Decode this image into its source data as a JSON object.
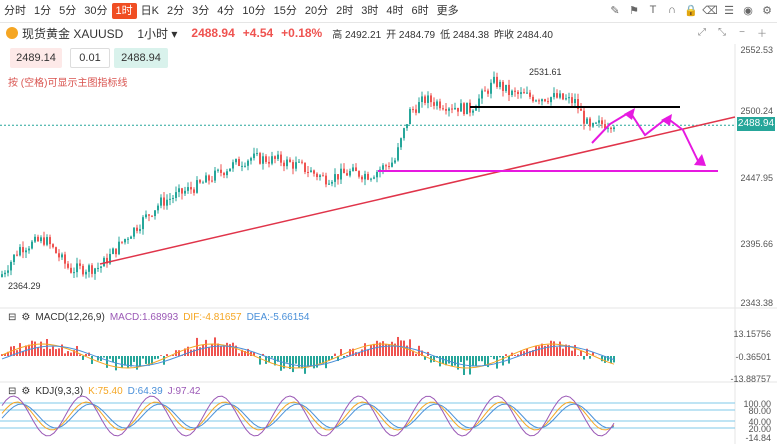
{
  "toolbar": {
    "timeframes": [
      "分时",
      "1分",
      "5分",
      "30分",
      "1时",
      "日K",
      "2分",
      "3分",
      "4分",
      "10分",
      "15分",
      "20分",
      "2时",
      "3时",
      "4时",
      "6时",
      "更多"
    ],
    "active_index": 4,
    "tool_icons": [
      "pen-icon",
      "flag-icon",
      "text-icon",
      "magnet-icon",
      "lock-icon",
      "eraser-icon",
      "layers-icon",
      "eye-icon",
      "settings-icon"
    ]
  },
  "symbol": {
    "name": "现货黄金 XAUUSD",
    "period": "1小时",
    "price": "2488.94",
    "change": "+4.54",
    "change_pct": "+0.18%",
    "high_label": "高 2492.21",
    "open_label": "开 2484.79",
    "low_label": "低 2484.38",
    "prev_label": "昨收 2484.40"
  },
  "order": {
    "sell": "2489.14",
    "lot": "0.01",
    "buy": "2488.94"
  },
  "hint": "按 (空格)可显示主图指标线",
  "price_axis": [
    "2552.53",
    "2500.24",
    "2447.95",
    "2395.66",
    "2343.38"
  ],
  "current_price_tag": "2488.94",
  "annotations": {
    "high": "2531.61",
    "low": "2364.29"
  },
  "macd": {
    "title": "MACD(12,26,9)",
    "macd": "MACD:1.68993",
    "dif": "DIF:-4.81657",
    "dea": "DEA:-5.66154",
    "axis": [
      "13.15756",
      "-0.36501",
      "-13.88757"
    ]
  },
  "kdj": {
    "title": "KDJ(9,3,3)",
    "k": "K:75.40",
    "d": "D:64.39",
    "j": "J:97.42",
    "axis": [
      "100.00",
      "80.00",
      "40.00",
      "20.00",
      "-14.84"
    ]
  },
  "colors": {
    "up": "#26a69a",
    "down": "#ef5350",
    "trend": "#e0344a",
    "magenta": "#e619e0",
    "macd_dif": "#f5a623",
    "macd_dea": "#4a90d9",
    "k": "#f5a623",
    "d": "#4a90d9",
    "j": "#9b59b6"
  }
}
